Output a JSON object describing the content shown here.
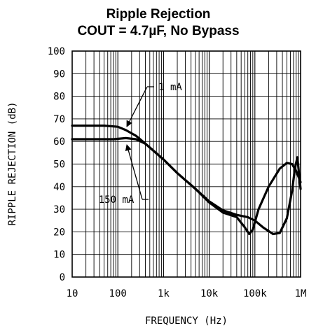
{
  "chart_data": {
    "type": "line",
    "title": "Ripple Rejection",
    "subtitle": "COUT = 4.7µF, No Bypass",
    "xlabel": "FREQUENCY (Hz)",
    "ylabel": "RIPPLE REJECTION (dB)",
    "x_scale": "log",
    "xlim": [
      10,
      1000000
    ],
    "ylim": [
      0,
      100
    ],
    "x_ticks": [
      10,
      100,
      1000,
      10000,
      100000,
      1000000
    ],
    "x_tick_labels": [
      "10",
      "100",
      "1k",
      "10k",
      "100k",
      "1M"
    ],
    "y_ticks": [
      0,
      10,
      20,
      30,
      40,
      50,
      60,
      70,
      80,
      90,
      100
    ],
    "y_tick_labels": [
      "0",
      "10",
      "20",
      "30",
      "40",
      "50",
      "60",
      "70",
      "80",
      "90",
      "100"
    ],
    "grid": true,
    "series": [
      {
        "name": "1 mA",
        "points": [
          [
            10,
            67
          ],
          [
            50,
            67
          ],
          [
            100,
            66.5
          ],
          [
            150,
            65
          ],
          [
            250,
            62.5
          ],
          [
            400,
            59
          ],
          [
            1000,
            52
          ],
          [
            2000,
            46
          ],
          [
            5000,
            39
          ],
          [
            10000,
            33.5
          ],
          [
            20000,
            29.5
          ],
          [
            40000,
            27.5
          ],
          [
            70000,
            26.5
          ],
          [
            100000,
            25
          ],
          [
            150000,
            22
          ],
          [
            250000,
            19
          ],
          [
            350000,
            19.5
          ],
          [
            500000,
            26
          ],
          [
            650000,
            38
          ],
          [
            750000,
            48
          ],
          [
            850000,
            53
          ],
          [
            1000000,
            39
          ]
        ]
      },
      {
        "name": "150 mA",
        "points": [
          [
            10,
            61
          ],
          [
            80,
            61
          ],
          [
            150,
            61.5
          ],
          [
            250,
            61
          ],
          [
            400,
            59
          ],
          [
            1000,
            52
          ],
          [
            2000,
            46
          ],
          [
            5000,
            39
          ],
          [
            10000,
            33
          ],
          [
            20000,
            28.5
          ],
          [
            40000,
            26.5
          ],
          [
            60000,
            22
          ],
          [
            75000,
            19
          ],
          [
            90000,
            21
          ],
          [
            120000,
            30
          ],
          [
            200000,
            40
          ],
          [
            350000,
            48
          ],
          [
            500000,
            50.5
          ],
          [
            650000,
            50
          ],
          [
            800000,
            47
          ],
          [
            1000000,
            42
          ]
        ]
      }
    ],
    "annotations": [
      {
        "text": "1 mA",
        "series": "1 mA"
      },
      {
        "text": "150 mA",
        "series": "150 mA"
      }
    ]
  }
}
